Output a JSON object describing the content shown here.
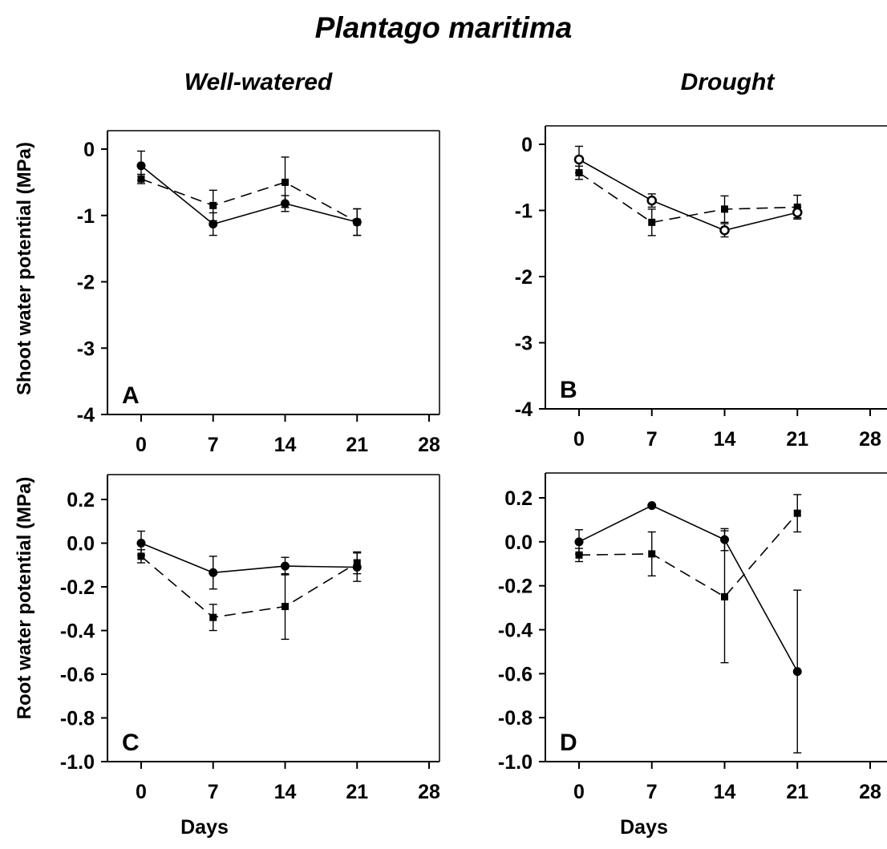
{
  "title": "Plantago maritima",
  "column_titles": [
    "Well-watered",
    "Drought"
  ],
  "row_labels": [
    "Shoot water potential (MPa)",
    "Root water potential (MPa)"
  ],
  "x_axis_label": "Days",
  "chart_data": [
    {
      "type": "line",
      "panel": "A",
      "x": [
        0,
        7,
        14,
        21
      ],
      "xticks": [
        0,
        7,
        14,
        21,
        28
      ],
      "xlim": [
        -2,
        30
      ],
      "ylim": [
        -4,
        0.3
      ],
      "yticks": [
        0,
        -1,
        -2,
        -3,
        -4
      ],
      "ytick_labels": [
        "0",
        "-1",
        "-2",
        "-3",
        "-4"
      ],
      "series": [
        {
          "marker": "filled-circle",
          "line": "solid",
          "values": [
            -0.25,
            -1.13,
            -0.82,
            -1.1
          ],
          "errors": [
            0.22,
            0.17,
            0.12,
            0.2
          ]
        },
        {
          "marker": "square",
          "line": "dashed",
          "values": [
            -0.45,
            -0.85,
            -0.5,
            -1.1
          ],
          "errors": [
            0.07,
            0.23,
            0.38,
            0.2
          ]
        }
      ]
    },
    {
      "type": "line",
      "panel": "B",
      "x": [
        0,
        7,
        14,
        21
      ],
      "xticks": [
        0,
        7,
        14,
        21,
        28
      ],
      "xlim": [
        -2,
        30
      ],
      "ylim": [
        -4,
        0.3
      ],
      "yticks": [
        0,
        -1,
        -2,
        -3,
        -4
      ],
      "ytick_labels": [
        "0",
        "-1",
        "-2",
        "-3",
        "-4"
      ],
      "series": [
        {
          "marker": "open-circle",
          "line": "solid",
          "values": [
            -0.23,
            -0.85,
            -1.3,
            -1.03
          ],
          "errors": [
            0.2,
            0.1,
            0.1,
            0.08
          ]
        },
        {
          "marker": "square",
          "line": "dashed",
          "values": [
            -0.43,
            -1.18,
            -0.98,
            -0.95
          ],
          "errors": [
            0.1,
            0.2,
            0.2,
            0.18
          ]
        }
      ]
    },
    {
      "type": "line",
      "panel": "C",
      "x": [
        0,
        7,
        14,
        21
      ],
      "xticks": [
        0,
        7,
        14,
        21,
        28
      ],
      "xlim": [
        -2,
        30
      ],
      "ylim": [
        -1.0,
        0.3
      ],
      "yticks": [
        0.2,
        0.0,
        -0.2,
        -0.4,
        -0.6,
        -0.8,
        -1.0
      ],
      "ytick_labels": [
        "0.2",
        "0.0",
        "-0.2",
        "-0.4",
        "-0.6",
        "-0.8",
        "-1.0"
      ],
      "series": [
        {
          "marker": "filled-circle",
          "line": "solid",
          "values": [
            0.0,
            -0.135,
            -0.105,
            -0.11
          ],
          "errors": [
            0.055,
            0.075,
            0.04,
            0.065
          ]
        },
        {
          "marker": "square",
          "line": "dashed",
          "values": [
            -0.06,
            -0.34,
            -0.29,
            -0.09
          ],
          "errors": [
            0.03,
            0.06,
            0.15,
            0.05
          ]
        }
      ]
    },
    {
      "type": "line",
      "panel": "D",
      "x": [
        0,
        7,
        14,
        21
      ],
      "xticks": [
        0,
        7,
        14,
        21,
        28
      ],
      "xlim": [
        -2,
        30
      ],
      "ylim": [
        -1.0,
        0.3
      ],
      "yticks": [
        0.2,
        0.0,
        -0.2,
        -0.4,
        -0.6,
        -0.8,
        -1.0
      ],
      "ytick_labels": [
        "0.2",
        "0.0",
        "-0.2",
        "-0.4",
        "-0.6",
        "-0.8",
        "-1.0"
      ],
      "series": [
        {
          "marker": "filled-circle",
          "line": "solid",
          "values": [
            0.0,
            0.165,
            0.01,
            -0.59
          ],
          "errors": [
            0.055,
            0,
            0.05,
            0.37
          ]
        },
        {
          "marker": "square",
          "line": "dashed",
          "values": [
            -0.06,
            -0.055,
            -0.25,
            0.13
          ],
          "errors": [
            0.03,
            0.1,
            0.3,
            0.085
          ]
        }
      ]
    }
  ]
}
